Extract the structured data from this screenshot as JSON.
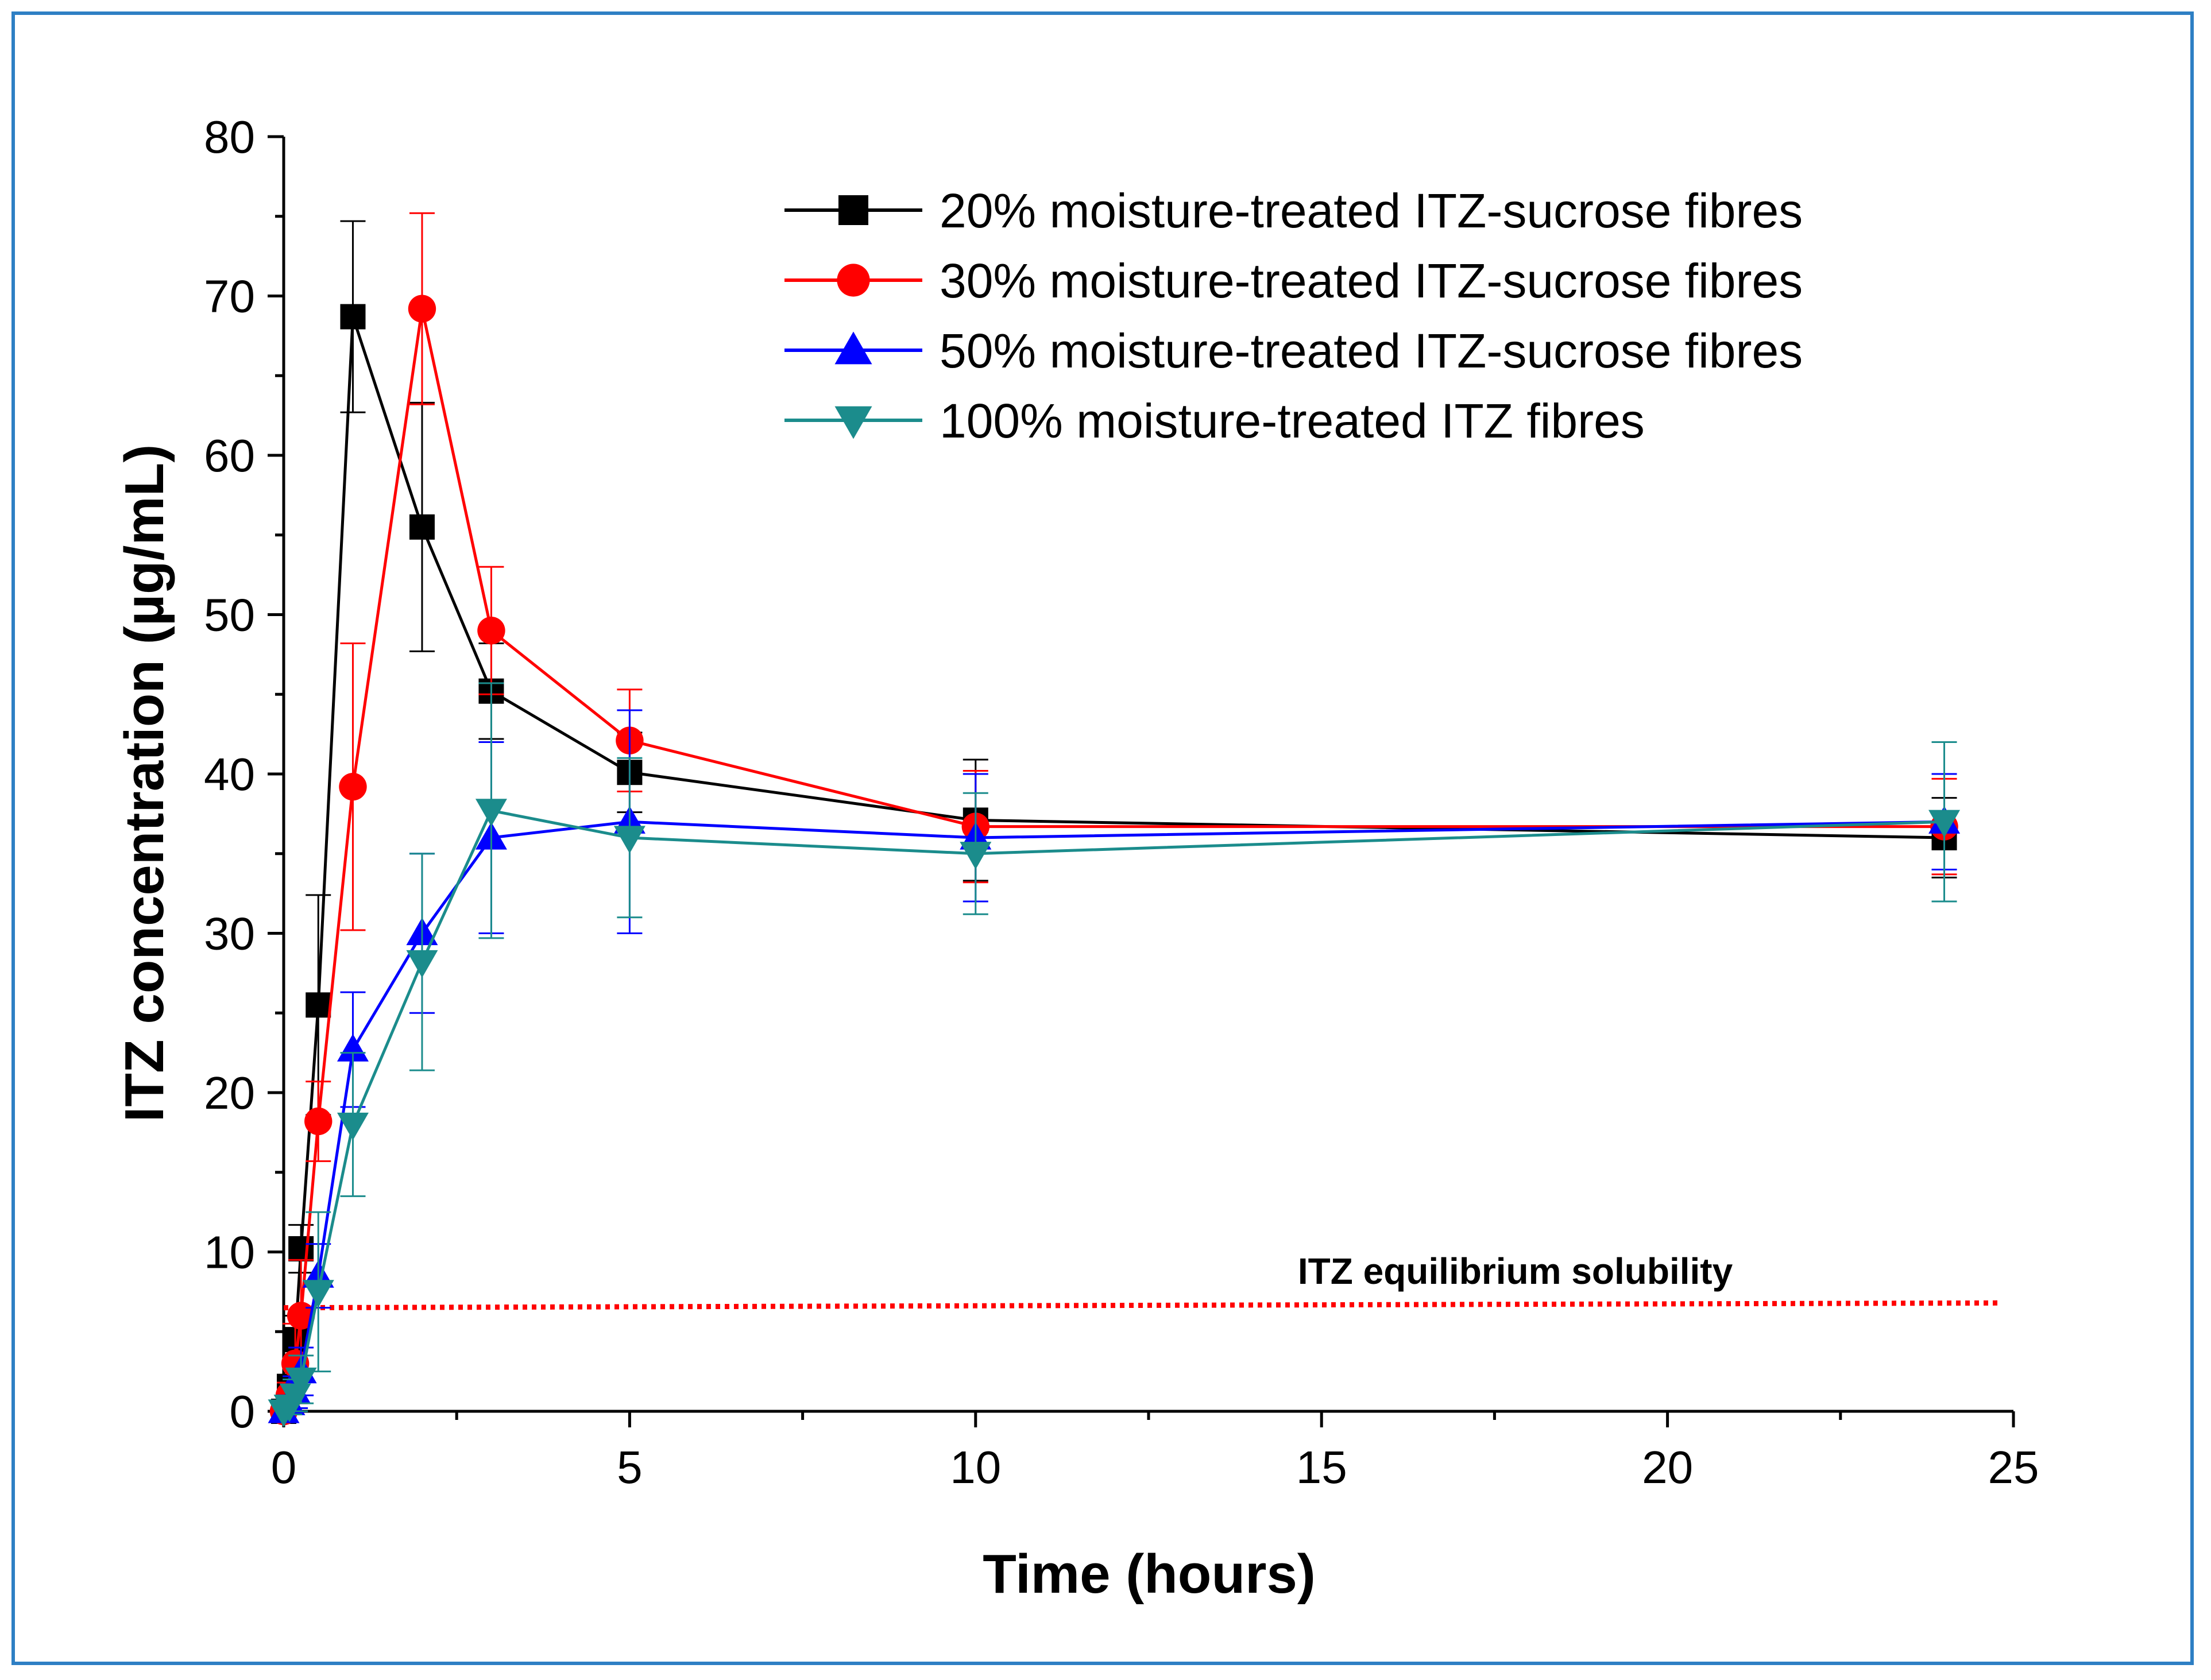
{
  "chart_data": {
    "type": "line",
    "title": "",
    "xlabel": "Time (hours)",
    "ylabel": "ITZ concentration (µg/mL)",
    "xlim": [
      0,
      25
    ],
    "ylim": [
      0,
      80
    ],
    "xticks": [
      0,
      5,
      10,
      15,
      20,
      25
    ],
    "yticks": [
      0,
      10,
      20,
      30,
      40,
      50,
      60,
      70,
      80
    ],
    "grid": false,
    "legend_position": "top-right",
    "series": [
      {
        "name": "20% moisture-treated ITZ-sucrose fibres",
        "color": "#000000",
        "marker": "square",
        "x": [
          0,
          0.083,
          0.167,
          0.25,
          0.5,
          1,
          2,
          3,
          5,
          10,
          24
        ],
        "y": [
          0,
          1.5,
          4.5,
          10.2,
          25.5,
          68.7,
          55.5,
          45.2,
          40.1,
          37.1,
          36.0
        ],
        "err": [
          0,
          0.8,
          1.5,
          1.5,
          6.9,
          6.0,
          7.8,
          3.0,
          2.5,
          3.8,
          2.5
        ]
      },
      {
        "name": "30% moisture-treated ITZ-sucrose fibres",
        "color": "#ff0000",
        "marker": "circle",
        "x": [
          0,
          0.083,
          0.167,
          0.25,
          0.5,
          1,
          2,
          3,
          5,
          10,
          24
        ],
        "y": [
          0,
          1.0,
          3.0,
          6.0,
          18.2,
          39.2,
          69.2,
          49.0,
          42.1,
          36.7,
          36.7
        ],
        "err": [
          0,
          0.8,
          2.5,
          3.5,
          2.5,
          9.0,
          6.0,
          4.0,
          3.2,
          3.5,
          3.0
        ]
      },
      {
        "name": "50% moisture-treated ITZ-sucrose fibres",
        "color": "#0000ff",
        "marker": "triangle-up",
        "x": [
          0,
          0.083,
          0.167,
          0.25,
          0.5,
          1,
          2,
          3,
          5,
          10,
          24
        ],
        "y": [
          0,
          0.5,
          1.2,
          2.5,
          8.5,
          22.7,
          30.0,
          36.0,
          37.0,
          36.0,
          37.0
        ],
        "err": [
          0,
          0.5,
          1.0,
          1.5,
          2.0,
          3.6,
          5.0,
          6.0,
          7.0,
          4.0,
          3.0
        ]
      },
      {
        "name": "100% moisture-treated ITZ fibres",
        "color": "#1b8c8c",
        "marker": "triangle-down",
        "x": [
          0,
          0.083,
          0.167,
          0.25,
          0.5,
          1,
          2,
          3,
          5,
          10,
          24
        ],
        "y": [
          0,
          0.3,
          1.0,
          2.0,
          7.5,
          18.0,
          28.2,
          37.7,
          36.0,
          35.0,
          37.0
        ],
        "err": [
          0,
          0.5,
          1.0,
          1.5,
          5.0,
          4.5,
          6.8,
          8.0,
          5.0,
          3.8,
          5.0
        ]
      }
    ],
    "reference_line": {
      "label": "ITZ equilibrium solubility",
      "y_start": 6.5,
      "y_end": 6.8,
      "x_start": 0,
      "x_end": 24.8,
      "color": "#ff0000"
    }
  }
}
